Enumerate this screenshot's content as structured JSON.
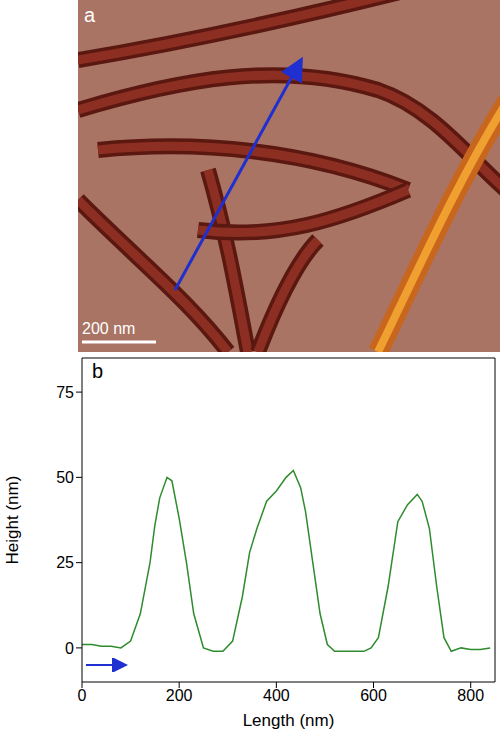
{
  "panel_a": {
    "label": "a",
    "scale_bar": "200 nm"
  },
  "chart_data": {
    "type": "line",
    "panel_label": "b",
    "x_label": "Length (nm)",
    "y_label": "Height (nm)",
    "xlim": [
      0,
      850
    ],
    "ylim": [
      -10,
      85
    ],
    "xticks": [
      0,
      200,
      400,
      600,
      800
    ],
    "yticks": [
      0,
      25,
      50,
      75
    ],
    "color": "#2e8b2e",
    "x": [
      0,
      20,
      40,
      60,
      80,
      100,
      120,
      140,
      150,
      160,
      175,
      185,
      200,
      215,
      230,
      250,
      270,
      290,
      310,
      330,
      345,
      360,
      380,
      400,
      420,
      435,
      450,
      460,
      475,
      490,
      505,
      520,
      540,
      560,
      580,
      595,
      610,
      630,
      650,
      670,
      690,
      700,
      715,
      730,
      745,
      760,
      780,
      800,
      820,
      840
    ],
    "values": [
      1,
      1,
      0.5,
      0.5,
      0,
      2,
      10,
      25,
      36,
      44,
      50,
      49,
      38,
      25,
      10,
      0,
      -1,
      -1,
      2,
      15,
      28,
      35,
      43,
      46,
      50,
      52,
      47,
      40,
      25,
      10,
      1,
      -1,
      -1,
      -1,
      -1,
      0,
      3,
      18,
      37,
      42,
      45,
      43,
      35,
      18,
      3,
      -1,
      0,
      -0.5,
      -0.5,
      0
    ]
  }
}
